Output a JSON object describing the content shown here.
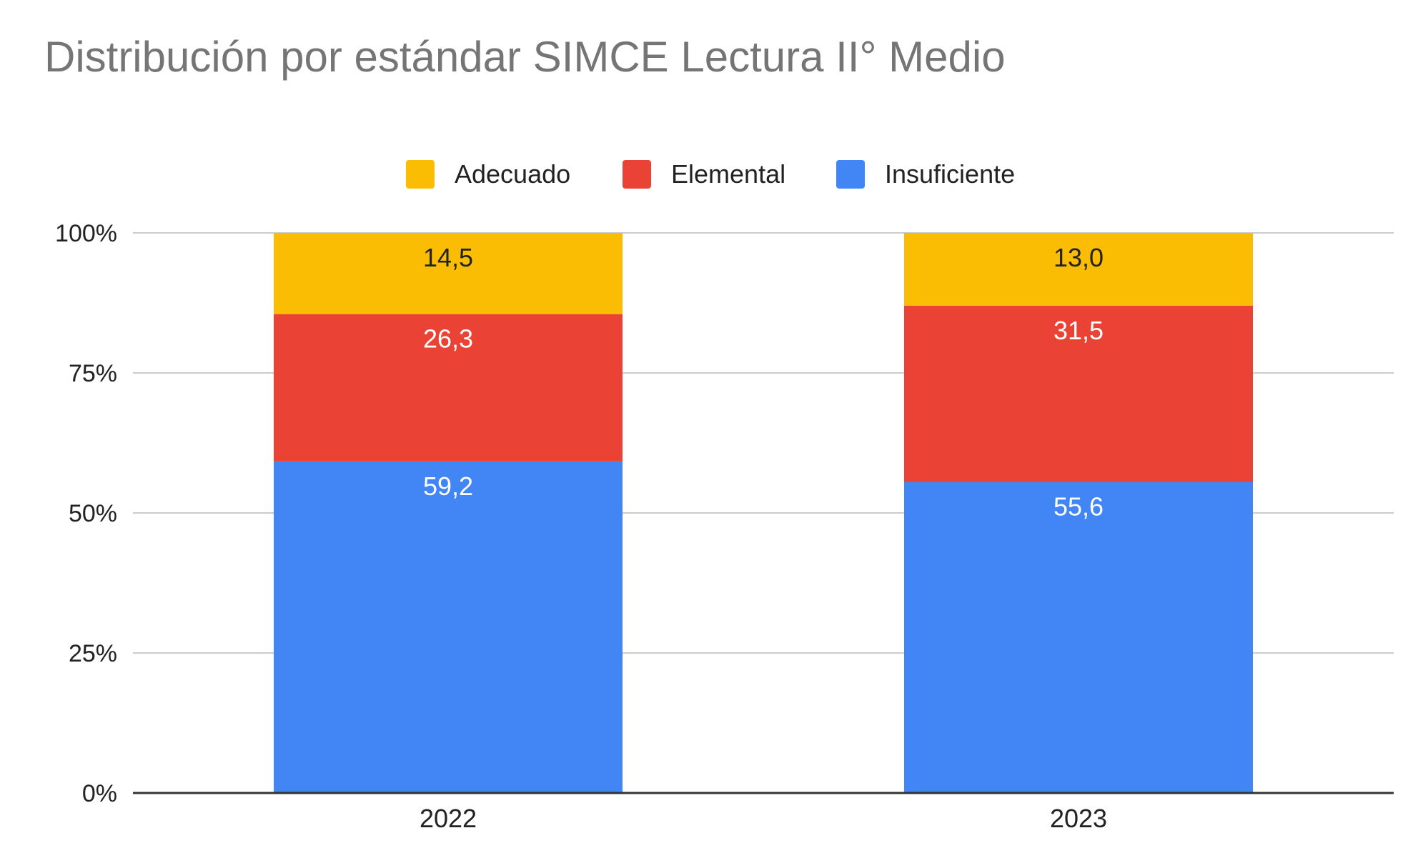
{
  "chart_data": {
    "type": "bar",
    "stacked": "percent",
    "title": "Distribución por estándar SIMCE Lectura II° Medio",
    "categories": [
      "2022",
      "2023"
    ],
    "series": [
      {
        "name": "Insuficiente",
        "color": "#4285F4",
        "label_color": "#ffffff",
        "values": [
          59.2,
          55.6
        ],
        "labels": [
          "59,2",
          "55,6"
        ]
      },
      {
        "name": "Elemental",
        "color": "#EA4335",
        "label_color": "#ffffff",
        "values": [
          26.3,
          31.5
        ],
        "labels": [
          "26,3",
          "31,5"
        ]
      },
      {
        "name": "Adecuado",
        "color": "#FBBC04",
        "label_color": "#222222",
        "values": [
          14.5,
          13.0
        ],
        "labels": [
          "14,5",
          "13,0"
        ]
      }
    ],
    "legend_order": [
      "Adecuado",
      "Elemental",
      "Insuficiente"
    ],
    "legend_position": "top",
    "ylim": [
      0,
      100
    ],
    "yticks": [
      "0%",
      "25%",
      "50%",
      "75%",
      "100%"
    ],
    "grid": true
  }
}
